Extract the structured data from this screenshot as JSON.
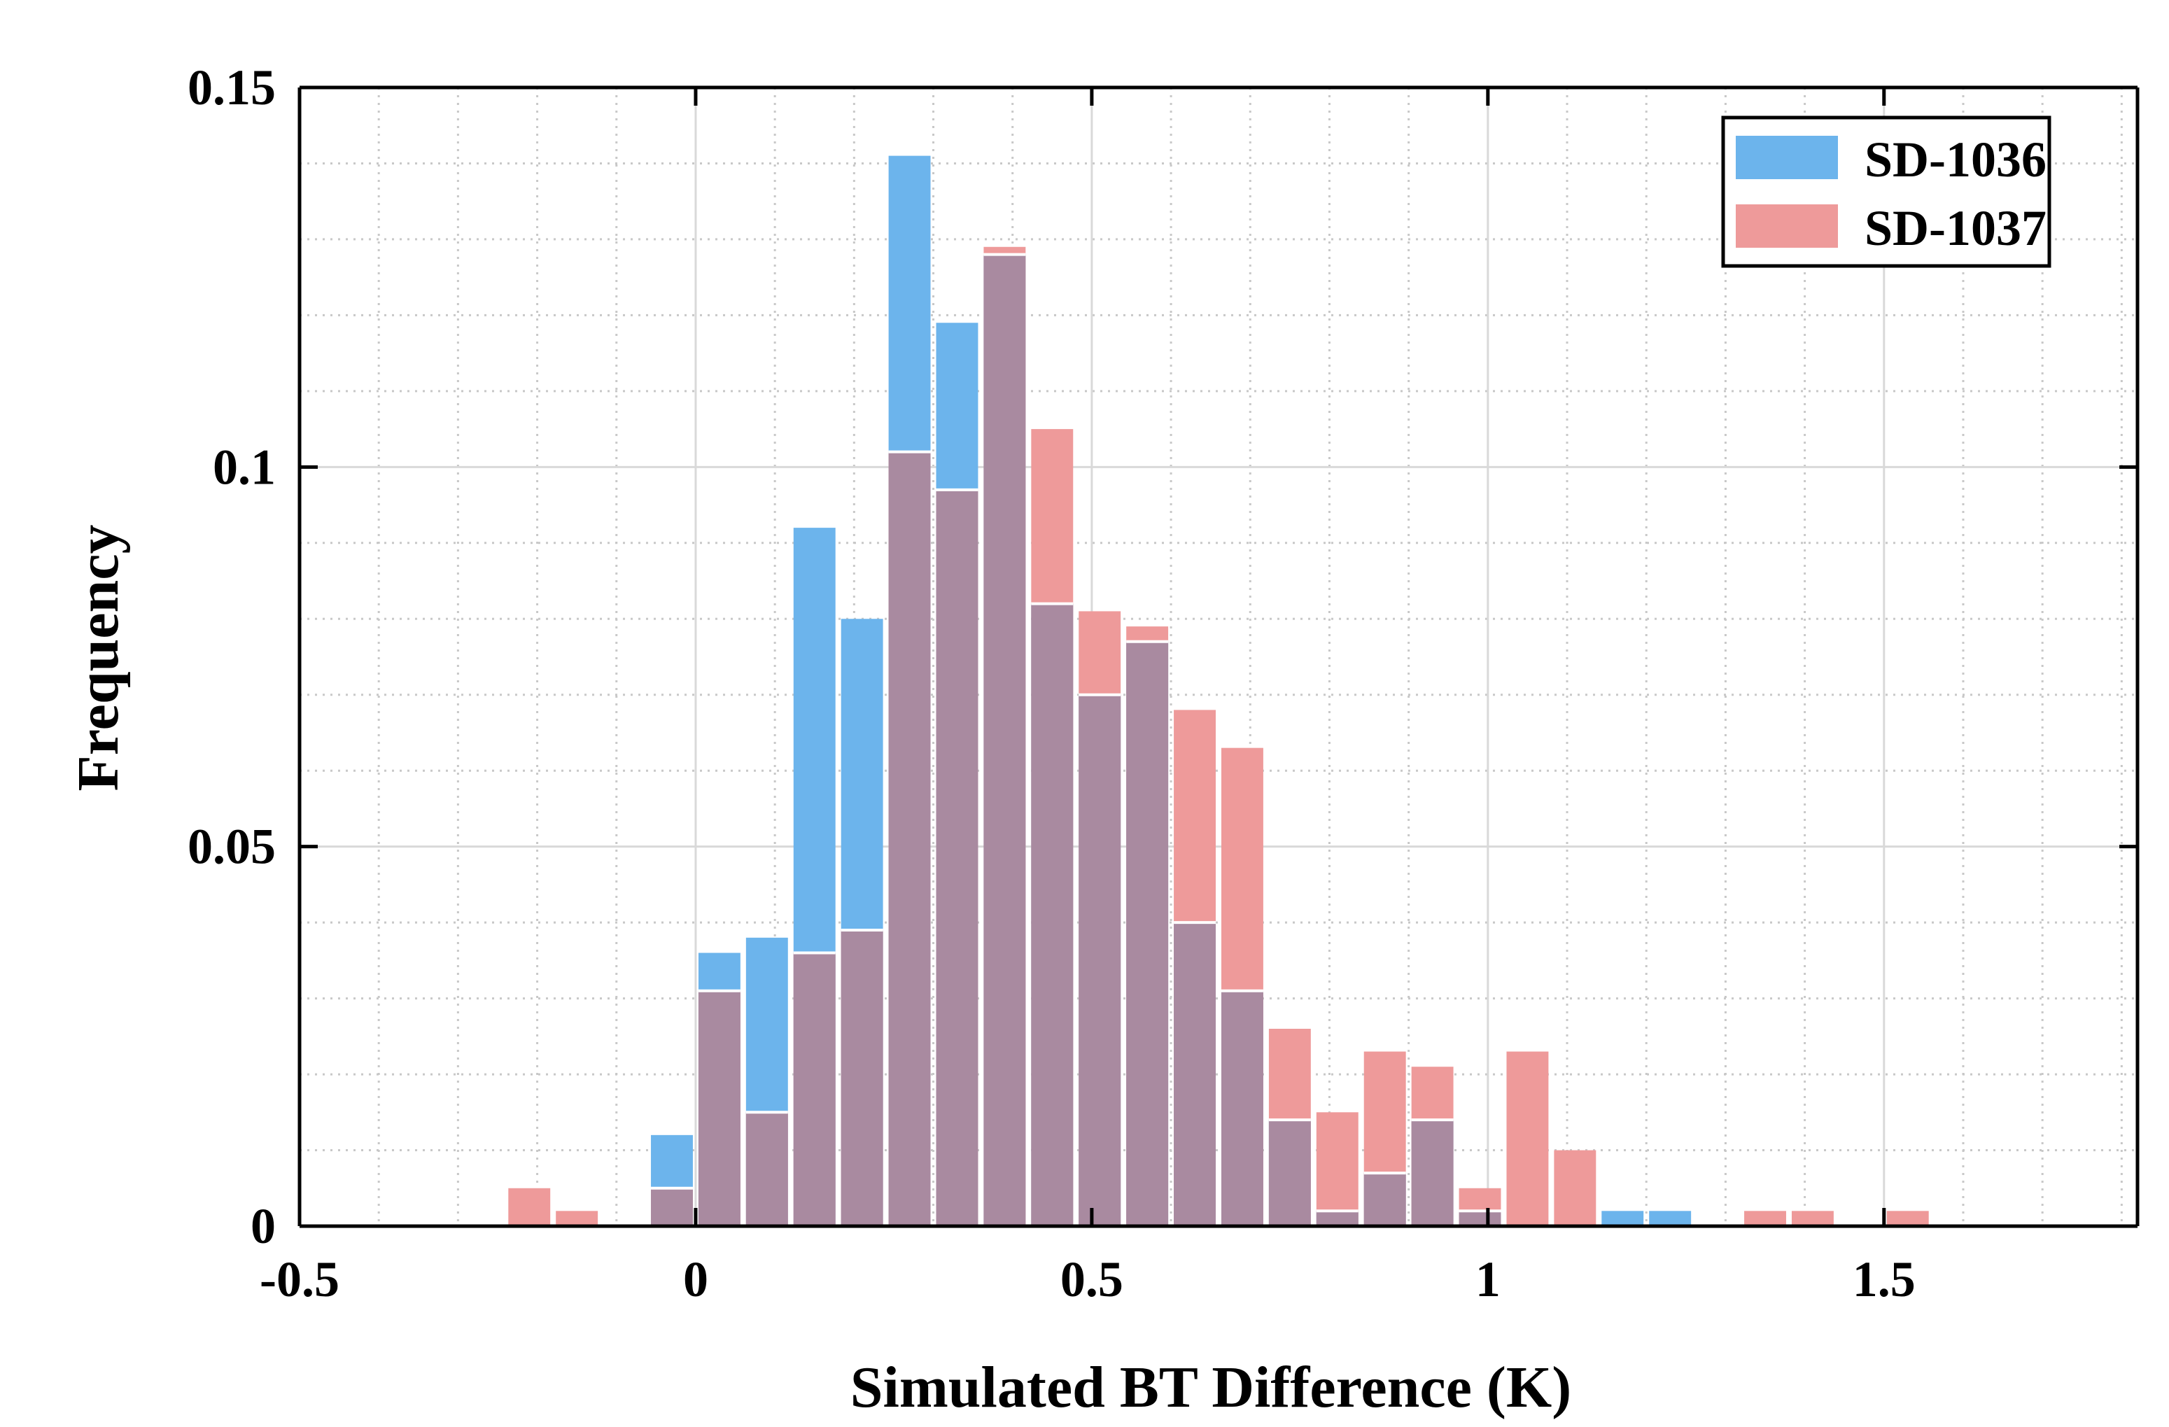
{
  "chart_data": {
    "type": "bar",
    "title": "",
    "xlabel": "Simulated BT Difference (K)",
    "ylabel": "Frequency",
    "xlim": [
      -0.5,
      1.82
    ],
    "ylim": [
      0,
      0.15
    ],
    "bin_width": 0.06,
    "x_ticks": [
      -0.5,
      0,
      0.5,
      1,
      1.5
    ],
    "x_tick_labels": [
      "-0.5",
      "0",
      "0.5",
      "1",
      "1.5"
    ],
    "y_ticks": [
      0,
      0.05,
      0.1,
      0.15
    ],
    "y_tick_labels": [
      "0",
      "0.05",
      "0.1",
      "0.15"
    ],
    "grid": true,
    "minor_grid": true,
    "legend_position": "top-right",
    "colors": {
      "SD-1036": "#6cb4ec",
      "SD-1037": "#ee9a9a",
      "overlap": "#a98aa0",
      "axes": "#000000",
      "grid": "#c8c8c8"
    },
    "bin_centers": [
      -0.21,
      -0.15,
      -0.09,
      -0.03,
      0.03,
      0.09,
      0.15,
      0.21,
      0.27,
      0.33,
      0.39,
      0.45,
      0.51,
      0.57,
      0.63,
      0.69,
      0.75,
      0.81,
      0.87,
      0.93,
      0.99,
      1.05,
      1.11,
      1.17,
      1.23,
      1.29,
      1.35,
      1.41,
      1.47,
      1.53
    ],
    "series": [
      {
        "name": "SD-1036",
        "values": [
          0,
          0,
          0,
          0.012,
          0.036,
          0.038,
          0.092,
          0.08,
          0.141,
          0.119,
          0.128,
          0.082,
          0.07,
          0.077,
          0.04,
          0.031,
          0.014,
          0.002,
          0.007,
          0.014,
          0.002,
          0,
          0,
          0.002,
          0.002,
          0,
          0,
          0,
          0,
          0
        ]
      },
      {
        "name": "SD-1037",
        "values": [
          0.005,
          0.002,
          0,
          0.005,
          0.031,
          0.015,
          0.036,
          0.039,
          0.102,
          0.097,
          0.129,
          0.105,
          0.081,
          0.079,
          0.068,
          0.063,
          0.026,
          0.015,
          0.023,
          0.021,
          0.005,
          0.023,
          0.01,
          0,
          0,
          0,
          0.002,
          0.002,
          0,
          0.002
        ]
      }
    ]
  }
}
